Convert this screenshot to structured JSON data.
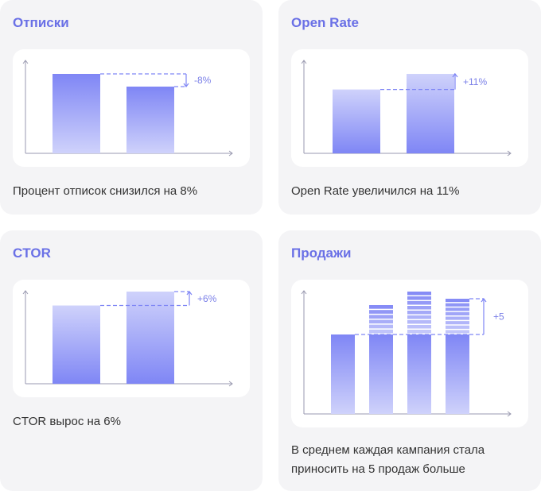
{
  "colors": {
    "accent": "#6a70e6",
    "bar_dark": "#7f86f5",
    "bar_light": "#cfd2fb",
    "axis": "#9a9ab0",
    "card_bg": "#f4f4f6"
  },
  "cards": [
    {
      "title": "Отписки",
      "caption": "Процент отписок снизился на 8%"
    },
    {
      "title": "Open Rate",
      "caption": "Open Rate увеличился на 11%"
    },
    {
      "title": "CTOR",
      "caption": "CTOR вырос на 6%"
    },
    {
      "title": "Продажи",
      "caption_lines": [
        "В среднем каждая кампания стала",
        "приносить на 5 продаж больше"
      ]
    }
  ],
  "chart_data": [
    {
      "type": "bar",
      "categories": [
        "",
        ""
      ],
      "values": [
        100,
        84
      ],
      "gradient": "dark-top",
      "annotation": "-8%",
      "ylim": [
        0,
        100
      ]
    },
    {
      "type": "bar",
      "categories": [
        "",
        ""
      ],
      "values": [
        82,
        102
      ],
      "gradient": "dark-bottom",
      "annotation": "+11%",
      "ylim": [
        0,
        102
      ]
    },
    {
      "type": "bar",
      "categories": [
        "",
        ""
      ],
      "values": [
        90,
        106
      ],
      "gradient": "dark-bottom",
      "annotation": "+6%",
      "ylim": [
        0,
        106
      ]
    },
    {
      "type": "bar",
      "categories": [
        "",
        "",
        "",
        ""
      ],
      "series": [
        {
          "values": [
            100,
            100,
            100,
            100
          ]
        },
        {
          "values": [
            0,
            37,
            54,
            45
          ]
        }
      ],
      "annotation": "+5",
      "ylim": [
        0,
        154
      ]
    }
  ]
}
